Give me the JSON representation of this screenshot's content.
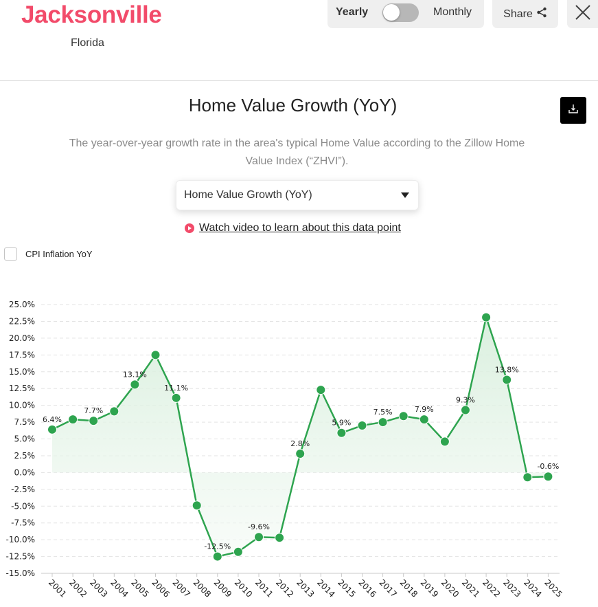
{
  "header": {
    "city": "Jacksonville",
    "state": "Florida",
    "toggle": {
      "left_label": "Yearly",
      "right_label": "Monthly",
      "state": "yearly"
    },
    "share_label": "Share",
    "share_icon": "share-icon",
    "close_icon": "close-icon"
  },
  "main": {
    "title": "Home Value Growth (YoY)",
    "download_icon": "download-icon",
    "subtitle": "The year-over-year growth rate in the area's typical Home Value according to the Zillow Home Value Index (“ZHVI”).",
    "dropdown": {
      "selected": "Home Value Growth (YoY)",
      "icon": "caret-down-icon"
    },
    "video_link": {
      "label": "Watch video to learn about this data point",
      "icon": "play-circle-icon"
    },
    "cpi_checkbox": {
      "label": "CPI Inflation YoY",
      "checked": false
    }
  },
  "colors": {
    "brand": "#f24b6a",
    "line": "#2ea44f",
    "area_fill": "#e8f5ea",
    "grid": "#e3e3e3"
  },
  "chart_data": {
    "type": "line",
    "title": "Home Value Growth (YoY)",
    "xlabel": "",
    "ylabel": "",
    "ylim": [
      -15,
      25
    ],
    "yticks": [
      "25.0%",
      "22.5%",
      "20.0%",
      "17.5%",
      "15.0%",
      "12.5%",
      "10.0%",
      "7.5%",
      "5.0%",
      "2.5%",
      "0.0%",
      "-2.5%",
      "-5.0%",
      "-7.5%",
      "-10.0%",
      "-12.5%",
      "-15.0%"
    ],
    "ytick_values": [
      25,
      22.5,
      20,
      17.5,
      15,
      12.5,
      10,
      7.5,
      5,
      2.5,
      0,
      -2.5,
      -5,
      -7.5,
      -10,
      -12.5,
      -15
    ],
    "grid": true,
    "legend": [],
    "categories": [
      "2001",
      "2002",
      "2003",
      "2004",
      "2005",
      "2006",
      "2007",
      "2008",
      "2009",
      "2010",
      "2011",
      "2012",
      "2013",
      "2014",
      "2015",
      "2016",
      "2017",
      "2018",
      "2019",
      "2020",
      "2021",
      "2022",
      "2023",
      "2024",
      "2025"
    ],
    "series": [
      {
        "name": "Home Value Growth (YoY)",
        "values": [
          6.4,
          7.9,
          7.7,
          9.1,
          13.1,
          17.5,
          11.1,
          -4.9,
          -12.5,
          -11.8,
          -9.6,
          -9.7,
          2.8,
          12.3,
          5.9,
          7.0,
          7.5,
          8.4,
          7.9,
          4.6,
          9.3,
          23.1,
          13.8,
          -0.7,
          -0.6
        ]
      }
    ],
    "data_labels": [
      {
        "index": 0,
        "text": "6.4%"
      },
      {
        "index": 2,
        "text": "7.7%"
      },
      {
        "index": 4,
        "text": "13.1%"
      },
      {
        "index": 6,
        "text": "11.1%"
      },
      {
        "index": 8,
        "text": "-12.5%"
      },
      {
        "index": 10,
        "text": "-9.6%"
      },
      {
        "index": 12,
        "text": "2.8%"
      },
      {
        "index": 14,
        "text": "5.9%"
      },
      {
        "index": 16,
        "text": "7.5%"
      },
      {
        "index": 18,
        "text": "7.9%"
      },
      {
        "index": 20,
        "text": "9.3%"
      },
      {
        "index": 22,
        "text": "13.8%"
      },
      {
        "index": 24,
        "text": "-0.6%"
      }
    ]
  }
}
